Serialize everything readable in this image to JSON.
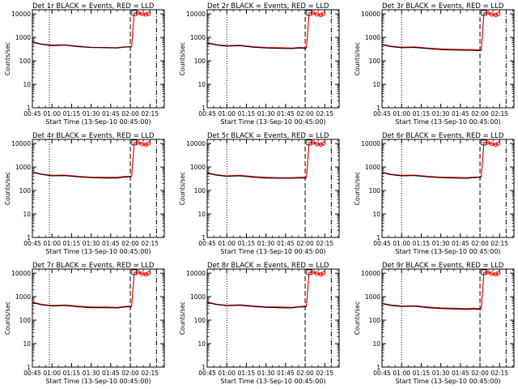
{
  "chart_data": {
    "type": "line",
    "yscale": "log",
    "ylim": [
      1,
      15000
    ],
    "xlim": [
      "00:45",
      "02:26"
    ],
    "x_ticks": [
      "00:45",
      "01:00",
      "01:15",
      "01:30",
      "01:45",
      "02:00",
      "02:15"
    ],
    "y_ticks": [
      "1",
      "10",
      "100",
      "1000",
      "10000"
    ],
    "xlabel": "Start Time (13-Sep-10 00:45:00)",
    "ylabel": "Counts/sec",
    "series_colors": {
      "events": "#000000",
      "lld": "#ff0000"
    },
    "panels": [
      {
        "title": "Det 1r BLACK = Events, RED = LLD",
        "vlines_dotted": [
          "00:58"
        ],
        "vlines_dashed": [
          "02:00"
        ],
        "vlines_dashdot": [
          "02:20"
        ],
        "events": {
          "x": [
            "00:45",
            "00:52",
            "01:00",
            "01:10",
            "01:20",
            "01:30",
            "01:40",
            "01:50",
            "01:55",
            "02:00",
            "02:01"
          ],
          "y": [
            620,
            500,
            440,
            460,
            400,
            370,
            360,
            350,
            380,
            390,
            390
          ]
        },
        "lld": {
          "x": [
            "00:45",
            "00:52",
            "01:00",
            "01:10",
            "01:20",
            "01:30",
            "01:40",
            "01:50",
            "01:55",
            "02:00",
            "02:01",
            "02:03",
            "02:06",
            "02:09",
            "02:12",
            "02:14"
          ],
          "y": [
            650,
            520,
            470,
            480,
            420,
            380,
            370,
            360,
            390,
            400,
            420,
            11000,
            11000,
            10000,
            9500,
            10000
          ]
        }
      },
      {
        "title": "Det 2r BLACK = Events, RED = LLD",
        "vlines_dotted": [
          "01:00"
        ],
        "vlines_dashed": [
          "02:00"
        ],
        "vlines_dashdot": [
          "02:20"
        ],
        "events": {
          "x": [
            "00:45",
            "00:52",
            "01:00",
            "01:10",
            "01:20",
            "01:30",
            "01:40",
            "01:50",
            "01:55",
            "02:00",
            "02:01"
          ],
          "y": [
            560,
            470,
            420,
            440,
            380,
            350,
            340,
            330,
            350,
            340,
            340
          ]
        },
        "lld": {
          "x": [
            "00:45",
            "00:52",
            "01:00",
            "01:10",
            "01:20",
            "01:30",
            "01:40",
            "01:50",
            "01:55",
            "02:00",
            "02:01",
            "02:03",
            "02:06",
            "02:09",
            "02:12",
            "02:14"
          ],
          "y": [
            590,
            490,
            440,
            460,
            400,
            370,
            360,
            350,
            370,
            360,
            380,
            11000,
            11000,
            9500,
            9000,
            10000
          ]
        }
      },
      {
        "title": "Det 3r BLACK = Events, RED = LLD",
        "vlines_dotted": [
          "01:00"
        ],
        "vlines_dashed": [
          "02:00"
        ],
        "vlines_dashdot": [
          "02:20"
        ],
        "events": {
          "x": [
            "00:45",
            "00:52",
            "01:00",
            "01:10",
            "01:20",
            "01:30",
            "01:40",
            "01:50",
            "01:55",
            "02:00",
            "02:01"
          ],
          "y": [
            480,
            400,
            360,
            370,
            330,
            300,
            290,
            280,
            280,
            270,
            270
          ]
        },
        "lld": {
          "x": [
            "00:45",
            "00:52",
            "01:00",
            "01:10",
            "01:20",
            "01:30",
            "01:40",
            "01:50",
            "01:55",
            "02:00",
            "02:01",
            "02:03",
            "02:06",
            "02:09",
            "02:12",
            "02:14"
          ],
          "y": [
            500,
            420,
            380,
            390,
            350,
            320,
            310,
            300,
            300,
            290,
            300,
            11000,
            11000,
            9500,
            9000,
            10000
          ]
        }
      },
      {
        "title": "Det 4r BLACK = Events, RED = LLD",
        "vlines_dotted": [
          "00:58"
        ],
        "vlines_dashed": [
          "02:00"
        ],
        "vlines_dashdot": [
          "02:20"
        ],
        "events": {
          "x": [
            "00:45",
            "00:52",
            "01:00",
            "01:10",
            "01:20",
            "01:30",
            "01:40",
            "01:50",
            "01:55",
            "02:00",
            "02:01"
          ],
          "y": [
            600,
            480,
            420,
            430,
            380,
            350,
            340,
            340,
            370,
            380,
            380
          ]
        },
        "lld": {
          "x": [
            "00:45",
            "00:52",
            "01:00",
            "01:10",
            "01:20",
            "01:30",
            "01:40",
            "01:50",
            "01:55",
            "02:00",
            "02:01",
            "02:03",
            "02:06",
            "02:09",
            "02:12",
            "02:14"
          ],
          "y": [
            630,
            500,
            440,
            450,
            400,
            370,
            360,
            360,
            390,
            400,
            420,
            11000,
            11000,
            9500,
            9000,
            10000
          ]
        }
      },
      {
        "title": "Det 5r BLACK = Events, RED = LLD",
        "vlines_dotted": [
          "01:00"
        ],
        "vlines_dashed": [
          "02:00"
        ],
        "vlines_dashdot": [
          "02:20"
        ],
        "events": {
          "x": [
            "00:45",
            "00:52",
            "01:00",
            "01:10",
            "01:20",
            "01:30",
            "01:40",
            "01:50",
            "01:55",
            "02:00",
            "02:01"
          ],
          "y": [
            540,
            450,
            400,
            420,
            370,
            340,
            330,
            330,
            340,
            340,
            340
          ]
        },
        "lld": {
          "x": [
            "00:45",
            "00:52",
            "01:00",
            "01:10",
            "01:20",
            "01:30",
            "01:40",
            "01:50",
            "01:55",
            "02:00",
            "02:01",
            "02:03",
            "02:06",
            "02:09",
            "02:12",
            "02:14"
          ],
          "y": [
            560,
            470,
            420,
            440,
            390,
            360,
            350,
            350,
            360,
            360,
            380,
            11000,
            11000,
            9500,
            9000,
            10000
          ]
        }
      },
      {
        "title": "Det 6r BLACK = Events, RED = LLD",
        "vlines_dotted": [
          "01:00"
        ],
        "vlines_dashed": [
          "02:00"
        ],
        "vlines_dashdot": [
          "02:20"
        ],
        "events": {
          "x": [
            "00:45",
            "00:52",
            "01:00",
            "01:10",
            "01:20",
            "01:30",
            "01:40",
            "01:50",
            "01:55",
            "02:00",
            "02:01"
          ],
          "y": [
            580,
            470,
            420,
            430,
            380,
            350,
            340,
            330,
            350,
            360,
            360
          ]
        },
        "lld": {
          "x": [
            "00:45",
            "00:52",
            "01:00",
            "01:10",
            "01:20",
            "01:30",
            "01:40",
            "01:50",
            "01:55",
            "02:00",
            "02:01",
            "02:03",
            "02:06",
            "02:09",
            "02:12",
            "02:14"
          ],
          "y": [
            600,
            490,
            440,
            450,
            400,
            370,
            360,
            350,
            370,
            380,
            400,
            11000,
            11000,
            9500,
            9000,
            10000
          ]
        }
      },
      {
        "title": "Det 7r BLACK = Events, RED = LLD",
        "vlines_dotted": [
          "00:58"
        ],
        "vlines_dashed": [
          "02:00"
        ],
        "vlines_dashdot": [
          "02:20"
        ],
        "events": {
          "x": [
            "00:45",
            "00:52",
            "01:00",
            "01:10",
            "01:20",
            "01:30",
            "01:40",
            "01:50",
            "01:55",
            "02:00",
            "02:01"
          ],
          "y": [
            560,
            450,
            400,
            420,
            370,
            340,
            340,
            330,
            360,
            370,
            370
          ]
        },
        "lld": {
          "x": [
            "00:45",
            "00:52",
            "01:00",
            "01:10",
            "01:20",
            "01:30",
            "01:40",
            "01:50",
            "01:55",
            "02:00",
            "02:01",
            "02:03",
            "02:06",
            "02:09",
            "02:12",
            "02:14"
          ],
          "y": [
            590,
            470,
            420,
            440,
            390,
            360,
            360,
            350,
            380,
            390,
            410,
            11000,
            11000,
            9500,
            9000,
            10000
          ]
        }
      },
      {
        "title": "Det 8r BLACK = Events, RED = LLD",
        "vlines_dotted": [
          "01:00"
        ],
        "vlines_dashed": [
          "02:00"
        ],
        "vlines_dashdot": [
          "02:20"
        ],
        "events": {
          "x": [
            "00:45",
            "00:52",
            "01:00",
            "01:10",
            "01:20",
            "01:30",
            "01:40",
            "01:50",
            "01:55",
            "02:00",
            "02:01"
          ],
          "y": [
            560,
            460,
            410,
            430,
            380,
            350,
            340,
            330,
            360,
            370,
            370
          ]
        },
        "lld": {
          "x": [
            "00:45",
            "00:52",
            "01:00",
            "01:10",
            "01:20",
            "01:30",
            "01:40",
            "01:50",
            "01:55",
            "02:00",
            "02:01",
            "02:03",
            "02:06",
            "02:09",
            "02:12",
            "02:14"
          ],
          "y": [
            590,
            480,
            430,
            450,
            400,
            370,
            360,
            350,
            380,
            390,
            410,
            11000,
            11000,
            9500,
            9000,
            10000
          ]
        }
      },
      {
        "title": "Det 9r BLACK = Events, RED = LLD",
        "vlines_dotted": [
          "01:00"
        ],
        "vlines_dashed": [
          "02:00"
        ],
        "vlines_dashdot": [
          "02:20"
        ],
        "events": {
          "x": [
            "00:45",
            "00:52",
            "01:00",
            "01:10",
            "01:20",
            "01:30",
            "01:40",
            "01:50",
            "01:55",
            "02:00",
            "02:01"
          ],
          "y": [
            500,
            420,
            380,
            390,
            340,
            310,
            300,
            290,
            300,
            290,
            290
          ]
        },
        "lld": {
          "x": [
            "00:45",
            "00:52",
            "01:00",
            "01:10",
            "01:20",
            "01:30",
            "01:40",
            "01:50",
            "01:55",
            "02:00",
            "02:01",
            "02:03",
            "02:06",
            "02:09",
            "02:12",
            "02:14"
          ],
          "y": [
            520,
            440,
            400,
            410,
            360,
            330,
            320,
            310,
            320,
            310,
            330,
            11000,
            11000,
            9500,
            9000,
            10000
          ]
        }
      }
    ]
  }
}
